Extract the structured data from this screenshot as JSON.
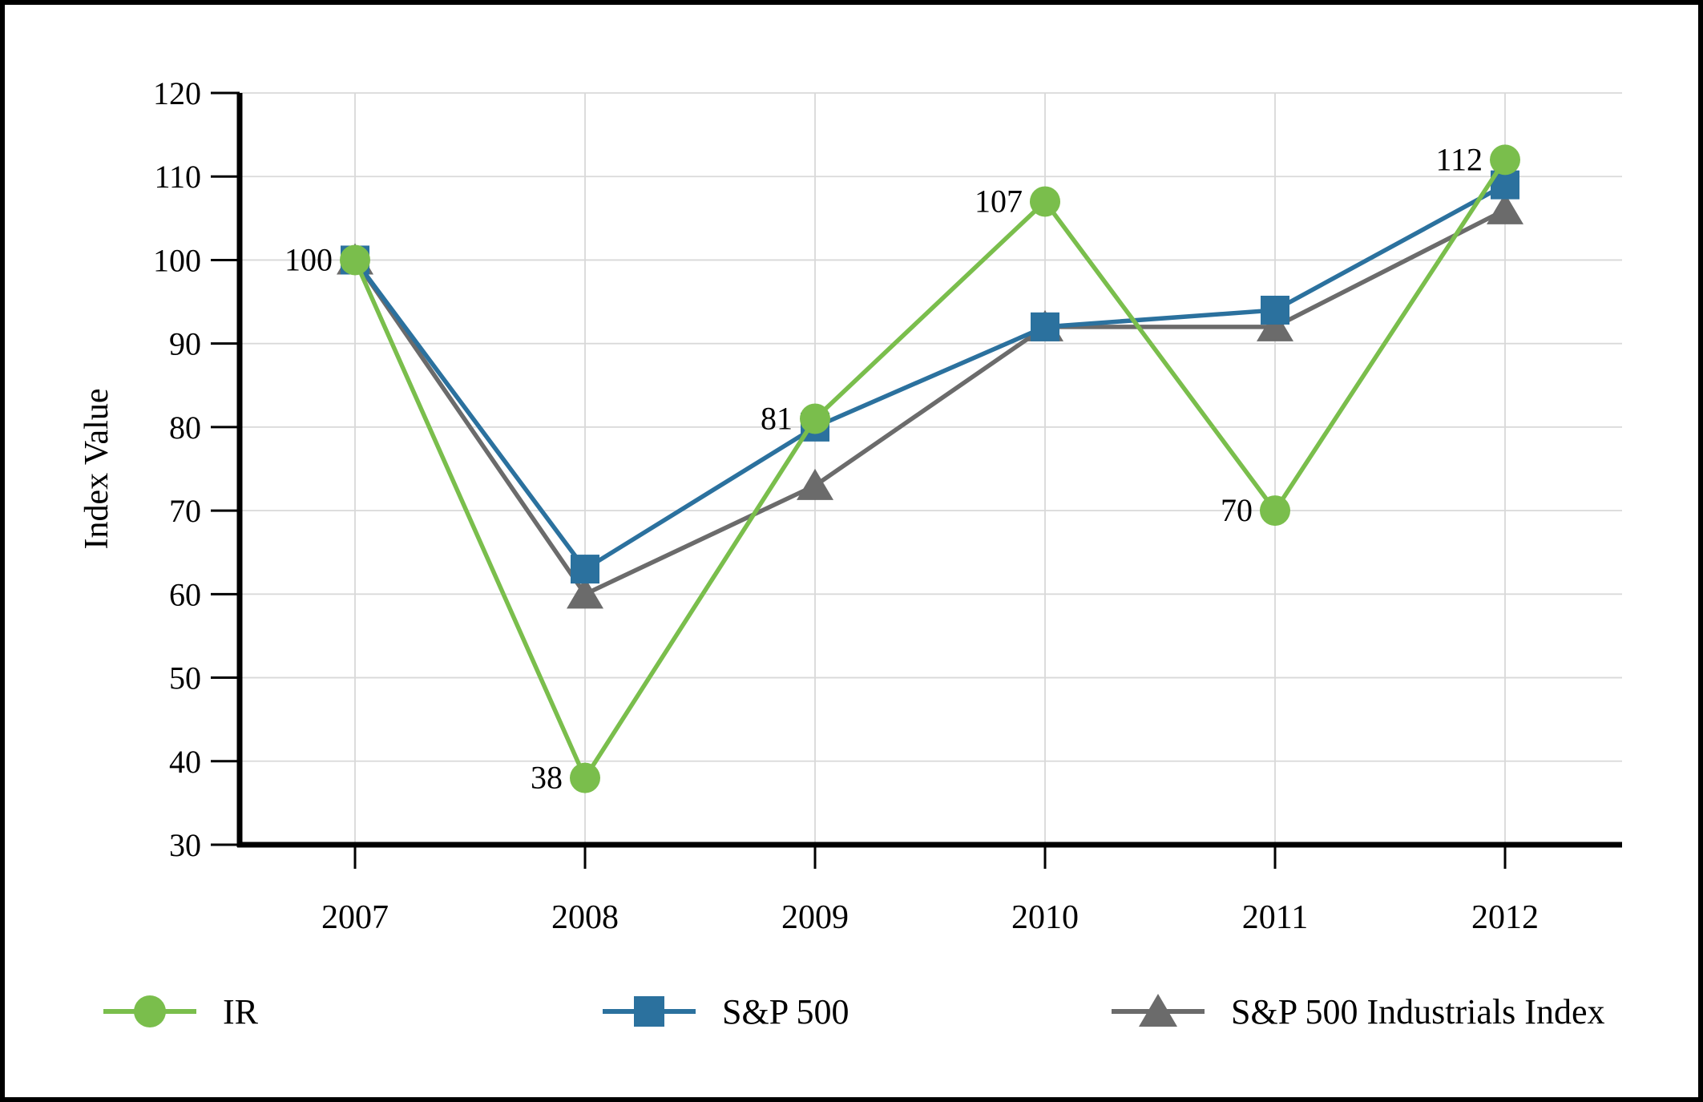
{
  "frame": {
    "background": "#ffffff",
    "border_color": "#000000"
  },
  "chart_data": {
    "type": "line",
    "title": "",
    "xlabel": "",
    "ylabel": "Index Value",
    "x": [
      "2007",
      "2008",
      "2009",
      "2010",
      "2011",
      "2012"
    ],
    "series": [
      {
        "name": "S&P 500 Industrials Index",
        "marker": "triangle",
        "color": "#6B6B6B",
        "values": [
          100,
          60,
          73,
          92,
          92,
          106
        ]
      },
      {
        "name": "S&P 500",
        "marker": "square",
        "color": "#2B719E",
        "values": [
          100,
          63,
          80,
          92,
          94,
          109
        ]
      },
      {
        "name": "IR",
        "marker": "circle",
        "color": "#7ABE4C",
        "values": [
          100,
          38,
          81,
          107,
          70,
          112
        ],
        "point_labels": [
          "100",
          "38",
          "81",
          "107",
          "70",
          "112"
        ]
      }
    ],
    "ylim": [
      30,
      120
    ],
    "yticks": [
      30,
      40,
      50,
      60,
      70,
      80,
      90,
      100,
      110,
      120
    ],
    "grid": true,
    "legend_position": "bottom",
    "legend_order": [
      "IR",
      "S&P 500",
      "S&P 500 Industrials Index"
    ],
    "colors": {
      "gridline": "#D9D9D9",
      "axis": "#000000",
      "text": "#000000"
    }
  }
}
